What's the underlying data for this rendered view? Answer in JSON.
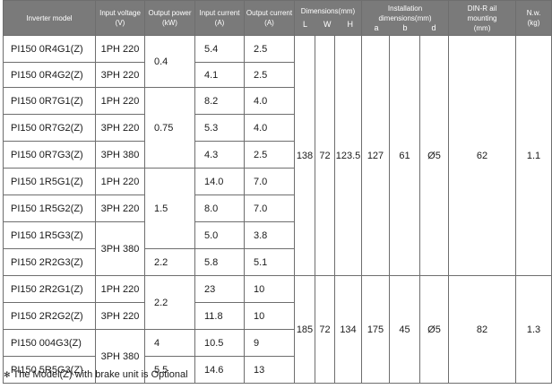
{
  "headers": {
    "model": "Inverter model",
    "voltage": [
      "Input voltage",
      "(V)"
    ],
    "power": [
      "Output power",
      "(kW)"
    ],
    "input_current": [
      "Input current",
      "(A)"
    ],
    "output_current": [
      "Output current",
      "(A)"
    ],
    "dimensions": "Dimensions(mm)",
    "dimensions_sub": [
      "L",
      "W",
      "H"
    ],
    "installation": [
      "Installation",
      "dimensions(mm)"
    ],
    "installation_sub": [
      "a",
      "b",
      "d"
    ],
    "dinrail": [
      "DIN-R ail",
      "mounting",
      "(mm)"
    ],
    "nw": [
      "N.w.",
      "(kg)"
    ]
  },
  "rows": [
    {
      "model": "PI150 0R4G1(Z)",
      "voltage": "1PH 220",
      "power": "0.4",
      "input_current": "5.4",
      "output_current": "2.5"
    },
    {
      "model": "PI150 0R4G2(Z)",
      "voltage": "3PH 220",
      "input_current": "4.1",
      "output_current": "2.5"
    },
    {
      "model": "PI150 0R7G1(Z)",
      "voltage": "1PH 220",
      "power": "0.75",
      "input_current": "8.2",
      "output_current": "4.0"
    },
    {
      "model": "PI150 0R7G2(Z)",
      "voltage": "3PH 220",
      "input_current": "5.3",
      "output_current": "4.0"
    },
    {
      "model": "PI150 0R7G3(Z)",
      "voltage": "3PH 380",
      "input_current": "4.3",
      "output_current": "2.5"
    },
    {
      "model": "PI150 1R5G1(Z)",
      "voltage": "1PH 220",
      "power": "1.5",
      "input_current": "14.0",
      "output_current": "7.0"
    },
    {
      "model": "PI150 1R5G2(Z)",
      "voltage": "3PH 220",
      "input_current": "8.0",
      "output_current": "7.0"
    },
    {
      "model": "PI150 1R5G3(Z)",
      "voltage": "3PH 380",
      "input_current": "5.0",
      "output_current": "3.8"
    },
    {
      "model": "PI150 2R2G3(Z)",
      "power": "2.2",
      "input_current": "5.8",
      "output_current": "5.1"
    },
    {
      "model": "PI150 2R2G1(Z)",
      "voltage": "1PH 220",
      "power": "2.2",
      "input_current": "23",
      "output_current": "10"
    },
    {
      "model": "PI150 2R2G2(Z)",
      "voltage": "3PH 220",
      "input_current": "11.8",
      "output_current": "10"
    },
    {
      "model": "PI150 004G3(Z)",
      "voltage": "3PH 380",
      "power": "4",
      "input_current": "10.5",
      "output_current": "9"
    },
    {
      "model": "PI150 5R5G3(Z)",
      "power": "5.5",
      "input_current": "14.6",
      "output_current": "13"
    }
  ],
  "groups": [
    {
      "L": "138",
      "W": "72",
      "H": "123.5",
      "a": "127",
      "b": "61",
      "d": "Ø5",
      "dinrail": "62",
      "nw": "1.1"
    },
    {
      "L": "185",
      "W": "72",
      "H": "134",
      "a": "175",
      "b": "45",
      "d": "Ø5",
      "dinrail": "82",
      "nw": "1.3"
    }
  ],
  "footnote": {
    "mark": "✻",
    "text": "The Model(Z) with brake unit is Optional"
  }
}
